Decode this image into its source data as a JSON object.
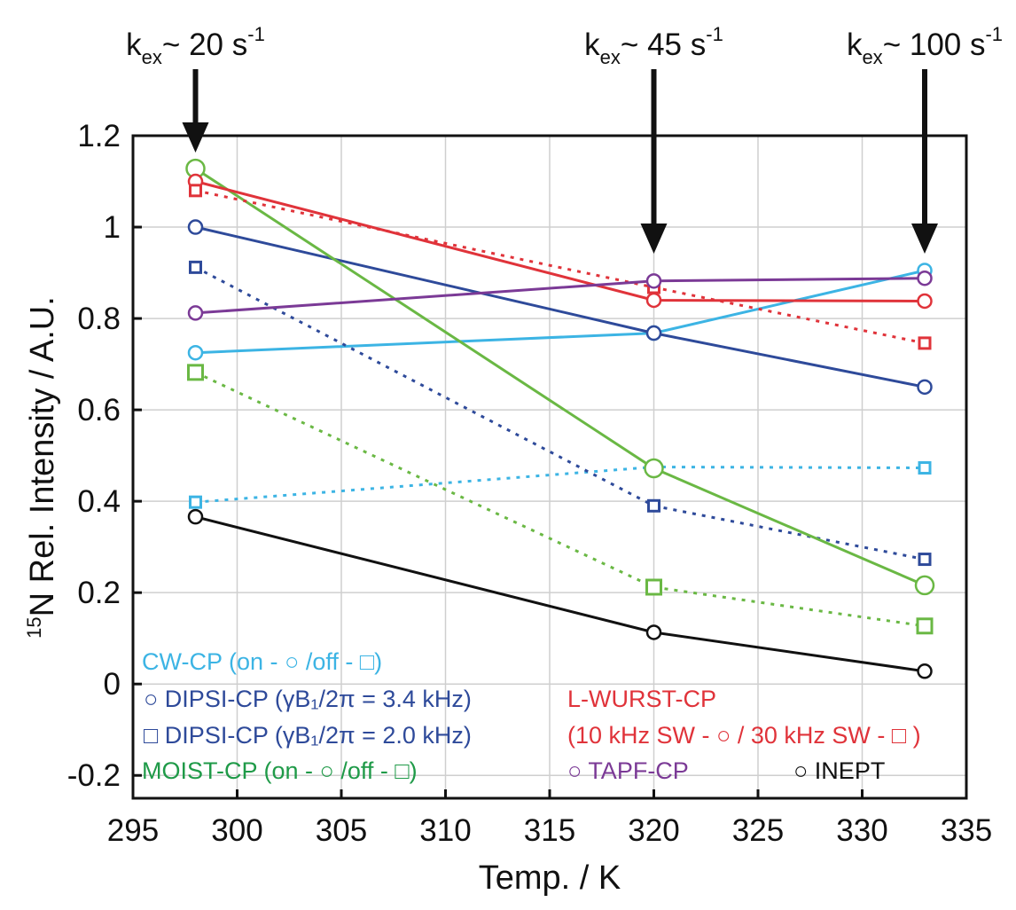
{
  "chart_data": {
    "type": "line",
    "xlabel": "Temp. / K",
    "ylabel_sup": "15",
    "ylabel": "N Rel. Intensity / A.U.",
    "xlim": [
      295,
      335
    ],
    "ylim": [
      -0.25,
      1.2
    ],
    "xticks": [
      295,
      300,
      305,
      310,
      315,
      320,
      325,
      330,
      335
    ],
    "yticks": [
      -0.2,
      0,
      0.2,
      0.4,
      0.6,
      0.8,
      1,
      1.2
    ],
    "yticklabels": [
      "-0.2",
      "0",
      "0.2",
      "0.4",
      "0.6",
      "0.8",
      "1",
      "1.2"
    ],
    "grid": true,
    "annotations": [
      {
        "prefix": "k",
        "sub": "ex",
        "text": "~ 20 s",
        "sup": "-1",
        "x": 298
      },
      {
        "prefix": "k",
        "sub": "ex",
        "text": "~ 45 s",
        "sup": "-1",
        "x": 320
      },
      {
        "prefix": "k",
        "sub": "ex",
        "text": "~ 100 s",
        "sup": "-1",
        "x": 333
      }
    ],
    "series": [
      {
        "key": "cw_on",
        "color": "#3cb4e4",
        "marker": "circle",
        "dash": false,
        "x": [
          298,
          320,
          333
        ],
        "y": [
          0.725,
          0.768,
          0.905
        ]
      },
      {
        "key": "cw_off",
        "color": "#3cb4e4",
        "marker": "square",
        "dash": true,
        "x": [
          298,
          320,
          333
        ],
        "y": [
          0.398,
          0.475,
          0.473
        ]
      },
      {
        "key": "dipsi_34",
        "color": "#2e4a9a",
        "marker": "circle",
        "dash": false,
        "x": [
          298,
          320,
          333
        ],
        "y": [
          1.0,
          0.768,
          0.65
        ]
      },
      {
        "key": "dipsi_20",
        "color": "#2e4a9a",
        "marker": "square",
        "dash": true,
        "x": [
          298,
          320,
          333
        ],
        "y": [
          0.912,
          0.39,
          0.273
        ]
      },
      {
        "key": "moist_on",
        "color": "#6ab844",
        "marker": "circle",
        "dash": false,
        "x": [
          298,
          320,
          333
        ],
        "y": [
          1.128,
          0.472,
          0.216
        ]
      },
      {
        "key": "moist_off",
        "color": "#6ab844",
        "marker": "square",
        "dash": true,
        "x": [
          298,
          320,
          333
        ],
        "y": [
          0.682,
          0.212,
          0.127
        ]
      },
      {
        "key": "lwurst_10",
        "color": "#e0333a",
        "marker": "circle",
        "dash": false,
        "x": [
          298,
          320,
          333
        ],
        "y": [
          1.1,
          0.84,
          0.838
        ]
      },
      {
        "key": "lwurst_30",
        "color": "#e0333a",
        "marker": "square",
        "dash": true,
        "x": [
          298,
          320,
          333
        ],
        "y": [
          1.08,
          0.868,
          0.746
        ]
      },
      {
        "key": "tapf",
        "color": "#7b3a96",
        "marker": "circle",
        "dash": false,
        "x": [
          298,
          320,
          333
        ],
        "y": [
          0.812,
          0.882,
          0.888
        ]
      },
      {
        "key": "inept",
        "color": "#111111",
        "marker": "circle",
        "dash": false,
        "x": [
          298,
          320,
          333
        ],
        "y": [
          0.366,
          0.113,
          0.028
        ]
      }
    ],
    "legend": {
      "cw": {
        "color": "#3cb4e4",
        "text": "CW-CP (on - ○ /off - □)"
      },
      "dipsi_34": {
        "color": "#2e4a9a",
        "text": "○ DIPSI-CP (γB₁/2π = 3.4 kHz)"
      },
      "dipsi_20": {
        "color": "#2e4a9a",
        "text": "□ DIPSI-CP (γB₁/2π = 2.0 kHz)"
      },
      "moist": {
        "color": "#1f9a48",
        "text": "MOIST-CP (on - ○ /off - □)"
      },
      "lwurst_title": {
        "color": "#e0333a",
        "text": "L-WURST-CP"
      },
      "lwurst_detail": {
        "color": "#e0333a",
        "text": "(10 kHz SW - ○ / 30 kHz SW - □ )"
      },
      "tapf": {
        "color": "#7b3a96",
        "text": "○ TAPF-CP"
      },
      "inept": {
        "color": "#111111",
        "text": "○ INEPT"
      }
    }
  }
}
